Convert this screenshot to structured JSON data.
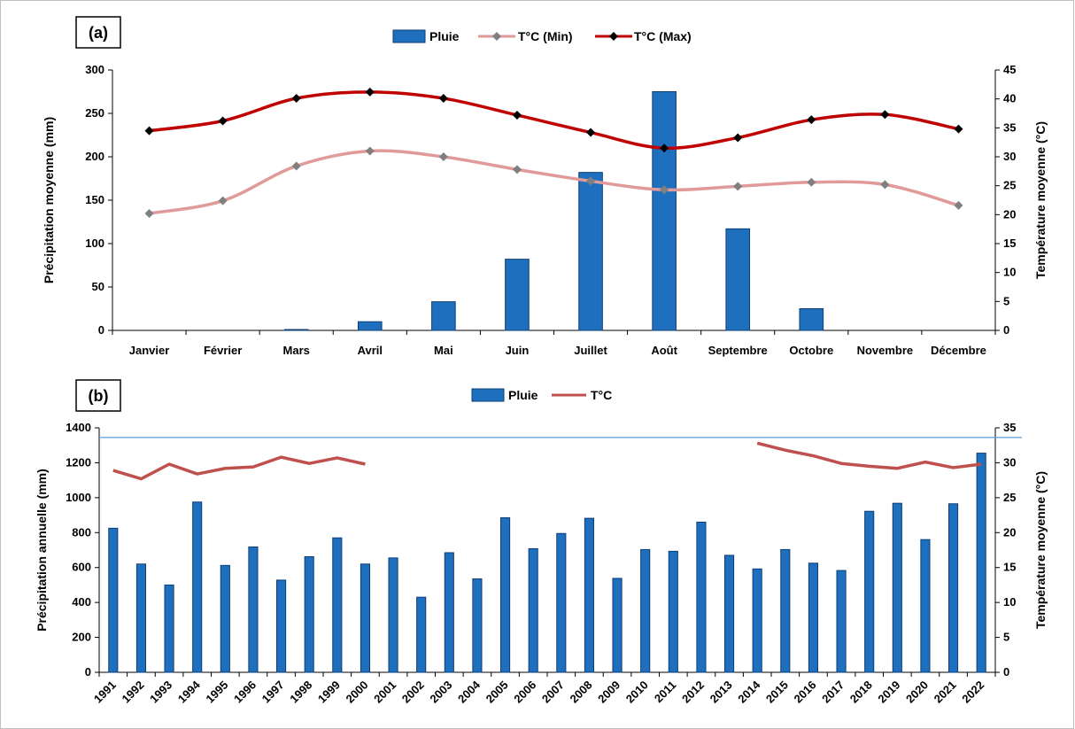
{
  "figure": {
    "frame_color": "#bfbfbf"
  },
  "colors": {
    "bar": "#1f6fbf",
    "bar_stroke": "#0d3d73",
    "tmin": "#e09a9a",
    "tmax": "#c00000",
    "tmax_marker": "#000000",
    "tmin_marker": "#7f7f7f",
    "temp_b": "#c0504d",
    "ref_line": "#5b9bd5"
  },
  "chart_data": [
    {
      "id": "a",
      "type": "bar",
      "panel_label": "(a)",
      "categories": [
        "Janvier",
        "Février",
        "Mars",
        "Avril",
        "Mai",
        "Juin",
        "Juillet",
        "Août",
        "Septembre",
        "Octobre",
        "Novembre",
        "Décembre"
      ],
      "series": [
        {
          "name": "Pluie",
          "type": "bar",
          "axis": "left",
          "values": [
            0,
            0,
            1,
            10,
            33,
            82,
            182,
            275,
            117,
            25,
            0,
            0
          ]
        },
        {
          "name": "T°C (Min)",
          "type": "line",
          "axis": "right",
          "marker": "diamond",
          "values": [
            20.2,
            22.4,
            28.4,
            31.0,
            30.0,
            27.8,
            25.8,
            24.3,
            24.9,
            25.6,
            25.2,
            21.6
          ]
        },
        {
          "name": "T°C (Max)",
          "type": "line",
          "axis": "right",
          "marker": "diamond",
          "values": [
            34.5,
            36.2,
            40.1,
            41.2,
            40.1,
            37.2,
            34.2,
            31.5,
            33.3,
            36.4,
            37.3,
            34.8
          ]
        }
      ],
      "ylabel": "Précipitation moyenne (mm)",
      "y2label": "Température moyenne (°C)",
      "ylim": [
        0,
        300
      ],
      "yticks": [
        0,
        50,
        100,
        150,
        200,
        250,
        300
      ],
      "y2lim": [
        0,
        45
      ],
      "y2ticks": [
        0,
        5,
        10,
        15,
        20,
        25,
        30,
        35,
        40,
        45
      ],
      "legend_position": "top-center",
      "grid": false
    },
    {
      "id": "b",
      "type": "bar",
      "panel_label": "(b)",
      "categories": [
        "1991",
        "1992",
        "1993",
        "1994",
        "1995",
        "1996",
        "1997",
        "1998",
        "1999",
        "2000",
        "2001",
        "2002",
        "2003",
        "2004",
        "2005",
        "2006",
        "2007",
        "2008",
        "2009",
        "2010",
        "2011",
        "2012",
        "2013",
        "2014",
        "2015",
        "2016",
        "2017",
        "2018",
        "2019",
        "2020",
        "2021",
        "2022"
      ],
      "series": [
        {
          "name": "Pluie",
          "type": "bar",
          "axis": "left",
          "values": [
            825,
            620,
            500,
            975,
            612,
            718,
            528,
            662,
            770,
            620,
            655,
            430,
            685,
            535,
            885,
            708,
            795,
            882,
            538,
            703,
            693,
            860,
            670,
            592,
            703,
            625,
            583,
            922,
            968,
            760,
            965,
            1255
          ]
        },
        {
          "name": "T°C",
          "type": "line",
          "axis": "right",
          "values": [
            28.9,
            27.7,
            29.8,
            28.4,
            29.2,
            29.4,
            30.8,
            29.9,
            30.7,
            29.8,
            null,
            null,
            null,
            null,
            null,
            null,
            null,
            null,
            null,
            null,
            null,
            null,
            null,
            32.8,
            31.8,
            31.0,
            29.9,
            29.5,
            29.2,
            30.1,
            29.3,
            29.8
          ]
        }
      ],
      "ylabel": "Précipitation annuelle (mm)",
      "y2label": "Température moyenne (°C)",
      "ylim": [
        0,
        1400
      ],
      "yticks": [
        0,
        200,
        400,
        600,
        800,
        1000,
        1200,
        1400
      ],
      "y2lim": [
        0,
        35
      ],
      "y2ticks": [
        0,
        5,
        10,
        15,
        20,
        25,
        30,
        35
      ],
      "reference_line_value": 1345,
      "legend_position": "top-center",
      "grid": false
    }
  ]
}
